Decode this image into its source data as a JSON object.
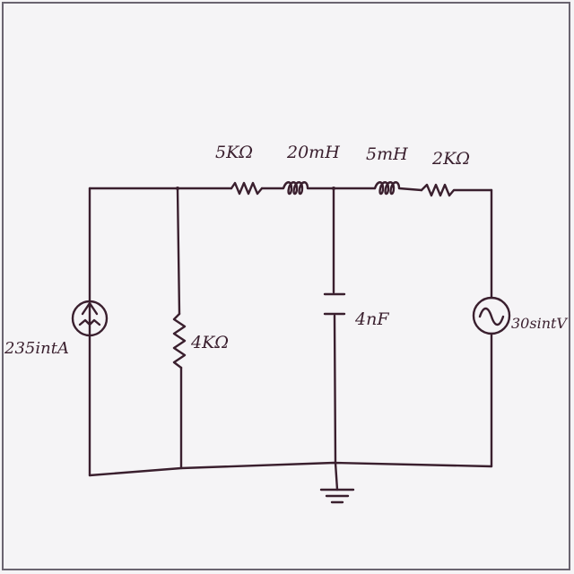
{
  "labels": {
    "r_5k": "5KΩ",
    "l_20m": "20mH",
    "l_5m": "5mH",
    "r_2k": "2KΩ",
    "c_4n": "4nF",
    "r_4k": "4KΩ",
    "i_src": "235intA",
    "v_src": "30sintV"
  },
  "colors": {
    "ink": "#3a1f2e",
    "paper": "#f5f4f6",
    "border": "#6a6470"
  }
}
